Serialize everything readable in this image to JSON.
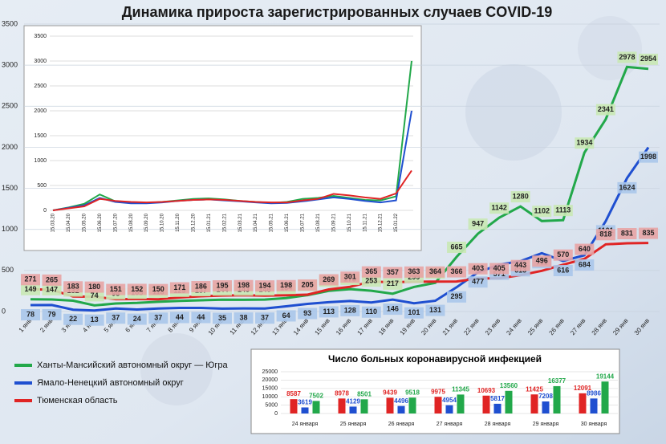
{
  "chart_data": [
    {
      "type": "line",
      "title": "Динамика прироста зарегистрированных случаев COVID-19",
      "categories": [
        "1 янв",
        "2 янв",
        "3 янв",
        "4 янв",
        "5 янв",
        "6 янв",
        "7 янв",
        "8 янв",
        "9 янв",
        "10 янв",
        "11 янв",
        "12 янв",
        "13 янв",
        "14 янв",
        "15 янв",
        "16 янв",
        "17 янв",
        "18 янв",
        "19 янв",
        "20 янв",
        "21 янв",
        "22 янв",
        "23 янв",
        "24 янв",
        "25 янв",
        "26 янв",
        "27 янв",
        "28 янв",
        "29 янв",
        "30 янв"
      ],
      "series": [
        {
          "name": "Ханты-Мансийский автономный округ — Югра",
          "color": "#22a84a",
          "label_fill": "#c9e8b4",
          "values": [
            149,
            147,
            132,
            74,
            98,
            105,
            118,
            129,
            137,
            144,
            143,
            146,
            164,
            199,
            251,
            273,
            253,
            217,
            299,
            350,
            665,
            947,
            1142,
            1280,
            1102,
            1113,
            1934,
            2341,
            2978,
            2954
          ]
        },
        {
          "name": "Ямало-Ненецкий автономный округ",
          "color": "#1f4fd0",
          "label_fill": "#aac6ea",
          "values": [
            78,
            79,
            22,
            13,
            37,
            24,
            37,
            44,
            44,
            35,
            38,
            37,
            64,
            93,
            113,
            128,
            110,
            146,
            101,
            131,
            295,
            477,
            571,
            613,
            711,
            616,
            684,
            1101,
            1624,
            1998
          ]
        },
        {
          "name": "Тюменская область",
          "color": "#e02424",
          "label_fill": "#e8a4a4",
          "values": [
            271,
            265,
            183,
            180,
            151,
            152,
            150,
            171,
            186,
            195,
            198,
            194,
            198,
            205,
            269,
            301,
            365,
            357,
            363,
            364,
            366,
            403,
            405,
            443,
            496,
            570,
            640,
            818,
            831,
            835
          ]
        }
      ],
      "ylim": [
        0,
        3500
      ],
      "yticks": [
        0,
        500,
        1000,
        1500,
        2000,
        2500,
        3000,
        3500
      ],
      "grid": true,
      "data_labels": true,
      "legend": "bottom-left"
    },
    {
      "type": "line",
      "categories": [
        "15.03.20",
        "15.04.20",
        "15.05.20",
        "15.06.20",
        "15.07.20",
        "15.08.20",
        "15.09.20",
        "15.10.20",
        "15.11.20",
        "15.12.20",
        "15.01.21",
        "15.02.21",
        "15.03.21",
        "15.04.21",
        "15.05.21",
        "15.06.21",
        "15.07.21",
        "15.08.21",
        "15.09.21",
        "15.10.21",
        "15.11.21",
        "15.12.21",
        "15.01.22",
        null
      ],
      "series": [
        {
          "color": "#22a84a",
          "values": [
            0,
            60,
            130,
            320,
            180,
            160,
            150,
            170,
            200,
            230,
            240,
            220,
            190,
            170,
            150,
            170,
            230,
            250,
            290,
            250,
            210,
            200,
            280,
            3000
          ]
        },
        {
          "color": "#1f4fd0",
          "values": [
            0,
            50,
            100,
            250,
            170,
            140,
            140,
            160,
            190,
            210,
            220,
            200,
            180,
            160,
            140,
            150,
            180,
            220,
            260,
            230,
            190,
            160,
            200,
            2000
          ]
        },
        {
          "color": "#e02424",
          "values": [
            0,
            40,
            80,
            230,
            190,
            170,
            160,
            170,
            190,
            210,
            220,
            210,
            190,
            170,
            160,
            160,
            200,
            230,
            330,
            300,
            260,
            230,
            340,
            800
          ]
        }
      ],
      "ylim": [
        0,
        3500
      ],
      "yticks": [
        0,
        500,
        1000,
        1500,
        2000,
        2500,
        3000,
        3500
      ],
      "grid": true,
      "data_labels": false
    },
    {
      "type": "bar",
      "title": "Число больных коронавирусной  инфекцией",
      "categories": [
        "24 января",
        "25 января",
        "26 января",
        "27 января",
        "28 января",
        "29 января",
        "30 января"
      ],
      "series": [
        {
          "color": "#e02424",
          "values": [
            8587,
            8978,
            9439,
            9975,
            10693,
            11425,
            12091
          ]
        },
        {
          "color": "#1f4fd0",
          "values": [
            3619,
            4129,
            4496,
            4954,
            5817,
            7208,
            8986
          ]
        },
        {
          "color": "#22a84a",
          "values": [
            7502,
            8501,
            9518,
            11345,
            13560,
            16377,
            19144
          ]
        }
      ],
      "ylim": [
        0,
        25000
      ],
      "yticks": [
        0,
        5000,
        10000,
        15000,
        20000,
        25000
      ],
      "grid": true,
      "data_labels": true
    }
  ]
}
